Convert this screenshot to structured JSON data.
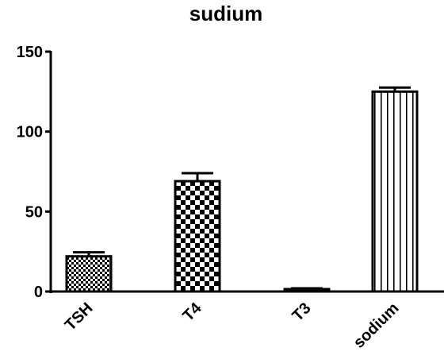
{
  "chart_data": {
    "type": "bar",
    "title": "sudium",
    "xlabel": "",
    "ylabel": "",
    "categories": [
      "TSH",
      "T4",
      "T3",
      "sodium"
    ],
    "values": [
      22,
      69,
      1.5,
      125
    ],
    "errors": [
      2.5,
      5,
      0.5,
      2.5
    ],
    "ylim": [
      0,
      150
    ],
    "yticks": [
      0,
      50,
      100,
      150
    ],
    "patterns": [
      "dense-checker",
      "checkerboard",
      "diagonal-hatch",
      "vertical-lines"
    ],
    "grid": false,
    "colors": {
      "bar_stroke": "#000000",
      "fill": "#000000",
      "background": "#ffffff"
    }
  }
}
